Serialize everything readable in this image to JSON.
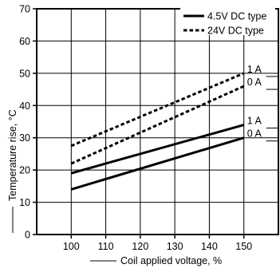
{
  "chart_data": {
    "type": "line",
    "xlabel": "Coil applied voltage, %",
    "ylabel": "Temperature rise, °C",
    "xlim": [
      90,
      160
    ],
    "ylim": [
      0,
      70
    ],
    "xticks": [
      100,
      110,
      120,
      130,
      140,
      150
    ],
    "yticks": [
      0,
      10,
      20,
      30,
      40,
      50,
      60,
      70
    ],
    "grid": true,
    "legend": {
      "position": "top-right",
      "entries": [
        {
          "label": "4.5V DC type",
          "style": "solid"
        },
        {
          "label": "24V DC type",
          "style": "dashed"
        }
      ]
    },
    "series": [
      {
        "type_label": "4.5V DC type",
        "name": "1 A",
        "style": "solid",
        "x": [
          100,
          150
        ],
        "y": [
          19,
          34
        ]
      },
      {
        "type_label": "4.5V DC type",
        "name": "0 A",
        "style": "solid",
        "x": [
          100,
          150
        ],
        "y": [
          14,
          30
        ]
      },
      {
        "type_label": "24V DC type",
        "name": "1 A",
        "style": "dashed",
        "x": [
          100,
          150
        ],
        "y": [
          27.5,
          50
        ]
      },
      {
        "type_label": "24V DC type",
        "name": "0 A",
        "style": "dashed",
        "x": [
          100,
          150
        ],
        "y": [
          22,
          46
        ]
      }
    ],
    "colors": {
      "line": "#000000",
      "grid": "#000000",
      "background": "#ffffff"
    }
  }
}
